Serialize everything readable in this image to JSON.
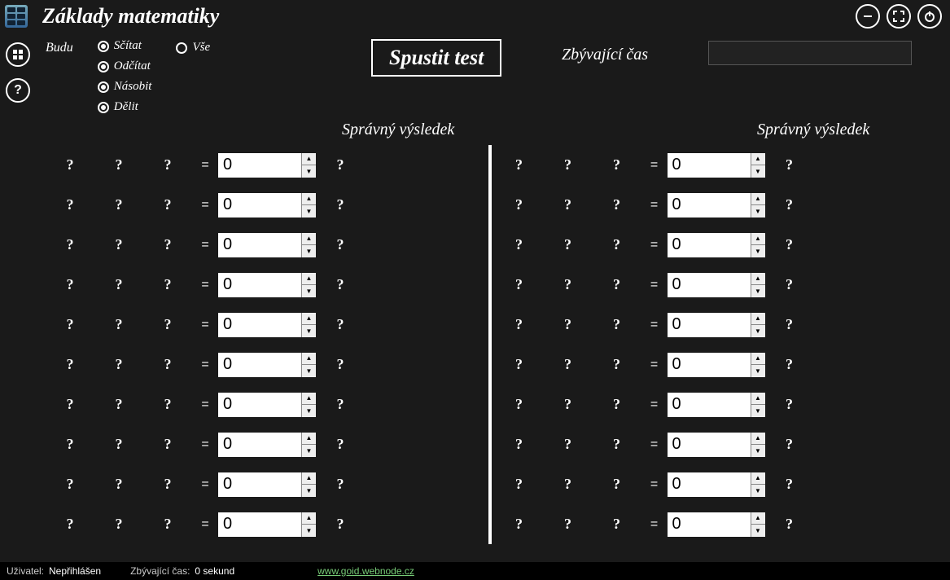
{
  "title": "Základy matematiky",
  "controls": {
    "budu_label": "Budu",
    "ops": [
      {
        "label": "Sčítat",
        "checked": true
      },
      {
        "label": "Odčítat",
        "checked": true
      },
      {
        "label": "Násobit",
        "checked": true
      },
      {
        "label": "Dělit",
        "checked": true
      }
    ],
    "all": {
      "label": "Vše",
      "checked": false
    }
  },
  "start_button": "Spustit test",
  "remaining_label": "Zbývající čas",
  "column_header": "Správný výsledek",
  "placeholder": "?",
  "equals": "=",
  "spinner_default": "0",
  "row_count": 10,
  "status": {
    "user_label": "Uživatel:",
    "user_value": "Nepřihlášen",
    "time_label": "Zbývající čas:",
    "time_value": "0 sekund",
    "link_text": "www.goid.webnode.cz"
  },
  "colors": {
    "bg": "#1a1a1a",
    "fg": "#ffffff",
    "input_bg": "#ffffff",
    "input_fg": "#000000",
    "link": "#77cc77"
  }
}
